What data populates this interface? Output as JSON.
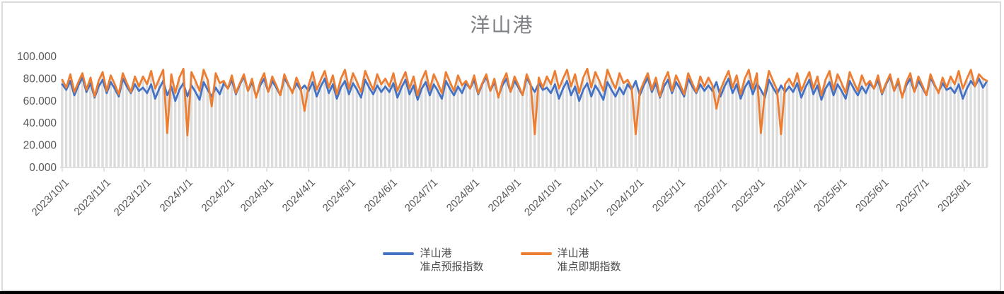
{
  "window": {
    "background": "#ffffff",
    "frame_border_color": "#dadada",
    "bottom_edge_color": "#000000"
  },
  "chart_data": {
    "type": "line",
    "title": "洋山港",
    "title_color": "#7d7f85",
    "xlabel": "",
    "ylabel": "",
    "ylim": [
      0,
      100
    ],
    "gridlines": false,
    "legend_position": "bottom",
    "axis_text_color": "#595959",
    "axis_line_color": "#d9d9d9",
    "background_bar_color": "#dcdcdc",
    "x_start_date": "2023/10/1",
    "sample_interval_days": 3,
    "y_tick_labels": [
      "0.000",
      "20.000",
      "40.000",
      "60.000",
      "80.000",
      "100.000"
    ],
    "x_tick_labels": [
      "2023/10/1",
      "2023/11/1",
      "2023/12/1",
      "2024/1/1",
      "2024/2/1",
      "2024/3/1",
      "2024/4/1",
      "2024/5/1",
      "2024/6/1",
      "2024/7/1",
      "2024/8/1",
      "2024/9/1",
      "2024/10/1",
      "2024/11/1",
      "2024/12/1",
      "2025/1/1",
      "2025/2/1",
      "2025/3/1",
      "2025/4/1",
      "2025/5/1",
      "2025/6/1",
      "2025/7/1",
      "2025/8/1"
    ],
    "series": [
      {
        "name": "洋山港准点预报指数",
        "color": "#4472C4",
        "values": [
          75,
          70,
          78,
          65,
          74,
          81,
          68,
          76,
          63,
          73,
          79,
          67,
          77,
          71,
          64,
          80,
          73,
          67,
          75,
          69,
          72,
          67,
          75,
          62,
          71,
          78,
          65,
          73,
          60,
          70,
          76,
          64,
          74,
          68,
          61,
          77,
          70,
          64,
          72,
          66,
          76,
          71,
          79,
          66,
          75,
          82,
          69,
          77,
          64,
          74,
          80,
          68,
          78,
          72,
          65,
          81,
          74,
          68,
          76,
          70,
          74,
          69,
          77,
          64,
          73,
          80,
          67,
          75,
          62,
          72,
          78,
          66,
          76,
          70,
          63,
          79,
          72,
          66,
          74,
          68,
          73,
          68,
          76,
          63,
          72,
          79,
          66,
          74,
          61,
          71,
          77,
          65,
          75,
          69,
          62,
          78,
          71,
          65,
          73,
          67,
          76,
          71,
          79,
          66,
          75,
          82,
          69,
          77,
          64,
          74,
          80,
          68,
          78,
          72,
          65,
          81,
          74,
          68,
          76,
          70,
          72,
          67,
          75,
          62,
          71,
          78,
          65,
          73,
          60,
          70,
          76,
          64,
          74,
          68,
          61,
          77,
          70,
          64,
          72,
          66,
          75,
          70,
          78,
          65,
          74,
          81,
          68,
          76,
          63,
          73,
          79,
          67,
          77,
          71,
          64,
          80,
          73,
          67,
          75,
          69,
          74,
          69,
          77,
          64,
          73,
          80,
          67,
          75,
          62,
          72,
          78,
          66,
          76,
          70,
          63,
          79,
          72,
          66,
          74,
          68,
          73,
          68,
          76,
          63,
          72,
          79,
          66,
          74,
          61,
          71,
          77,
          65,
          75,
          69,
          62,
          78,
          71,
          65,
          73,
          67,
          76,
          71,
          79,
          66,
          75,
          82,
          69,
          77,
          64,
          74,
          80,
          68,
          78,
          72,
          65,
          81,
          74,
          68,
          76,
          70,
          72,
          67,
          75,
          62,
          71,
          78,
          73,
          80,
          72,
          78
        ]
      },
      {
        "name": "洋山港准点即期指数",
        "color": "#ED7D31",
        "values": [
          79,
          72,
          84,
          68,
          77,
          85,
          70,
          81,
          64,
          78,
          86,
          69,
          83,
          75,
          66,
          85,
          76,
          68,
          82,
          73,
          82,
          75,
          87,
          71,
          80,
          88,
          31,
          84,
          67,
          81,
          89,
          29,
          86,
          78,
          69,
          88,
          79,
          55,
          85,
          76,
          78,
          71,
          83,
          67,
          76,
          84,
          69,
          80,
          63,
          77,
          85,
          68,
          82,
          74,
          65,
          84,
          75,
          67,
          81,
          72,
          51,
          74,
          86,
          70,
          79,
          87,
          72,
          83,
          66,
          80,
          88,
          71,
          85,
          77,
          68,
          87,
          78,
          70,
          84,
          75,
          80,
          73,
          85,
          69,
          78,
          86,
          71,
          82,
          65,
          79,
          87,
          70,
          84,
          76,
          67,
          86,
          77,
          69,
          83,
          74,
          78,
          71,
          83,
          67,
          76,
          84,
          69,
          80,
          63,
          77,
          85,
          68,
          82,
          74,
          65,
          84,
          75,
          30,
          81,
          72,
          82,
          75,
          87,
          71,
          80,
          88,
          73,
          84,
          67,
          81,
          89,
          72,
          86,
          78,
          69,
          88,
          79,
          71,
          85,
          76,
          79,
          72,
          30,
          68,
          77,
          85,
          70,
          81,
          64,
          78,
          86,
          69,
          83,
          75,
          66,
          85,
          76,
          68,
          82,
          73,
          81,
          74,
          53,
          70,
          79,
          87,
          72,
          83,
          66,
          80,
          88,
          71,
          85,
          31,
          68,
          87,
          78,
          70,
          30,
          75,
          80,
          73,
          85,
          69,
          78,
          86,
          71,
          82,
          65,
          79,
          87,
          70,
          84,
          76,
          67,
          86,
          77,
          69,
          83,
          74,
          78,
          71,
          83,
          67,
          76,
          84,
          69,
          80,
          63,
          77,
          85,
          68,
          82,
          74,
          65,
          84,
          75,
          67,
          81,
          72,
          82,
          75,
          87,
          71,
          80,
          88,
          73,
          84,
          80,
          78
        ]
      }
    ],
    "legend": {
      "items": [
        {
          "line1": "洋山港",
          "line2": "准点预报指数",
          "color": "#4472C4"
        },
        {
          "line1": "洋山港",
          "line2": "准点即期指数",
          "color": "#ED7D31"
        }
      ]
    }
  }
}
